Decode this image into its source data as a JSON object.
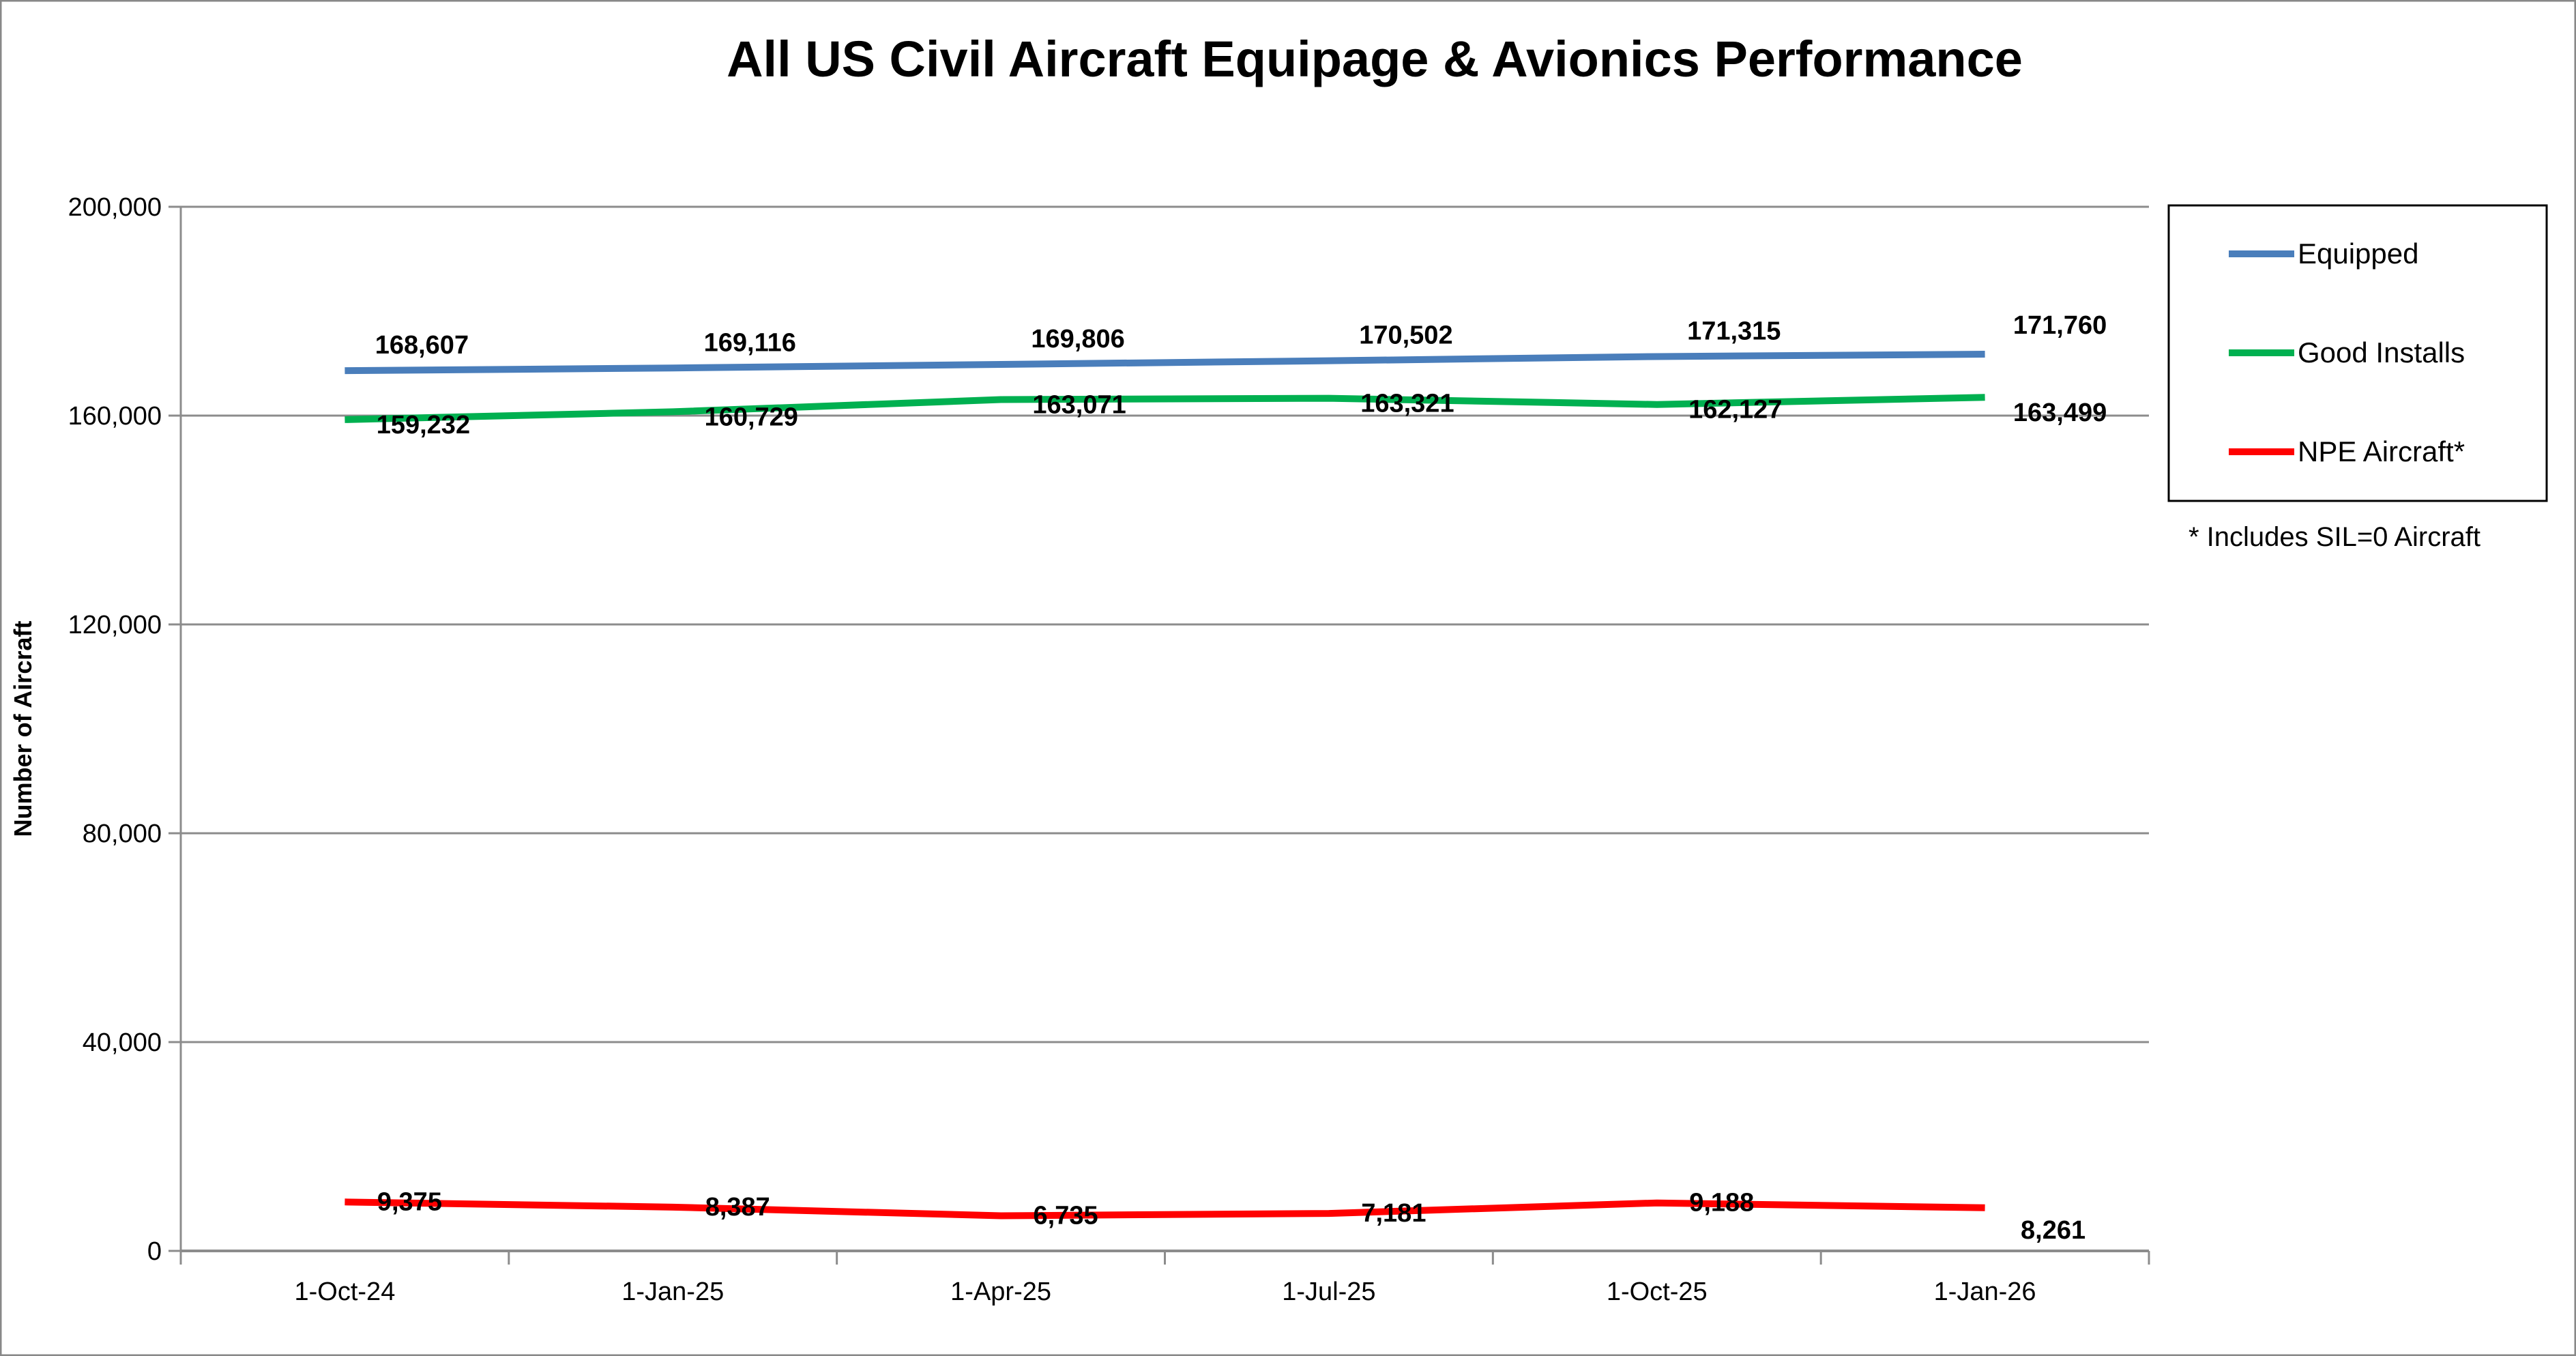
{
  "chart_data": {
    "type": "line",
    "title": "All US Civil Aircraft Equipage & Avionics Performance",
    "xlabel": "",
    "ylabel": "Number of Aircraft",
    "categories": [
      "1-Oct-24",
      "1-Jan-25",
      "1-Apr-25",
      "1-Jul-25",
      "1-Oct-25",
      "1-Jan-26"
    ],
    "ylim": [
      0,
      200000
    ],
    "yticks": [
      0,
      40000,
      80000,
      120000,
      160000,
      200000
    ],
    "ytick_labels": [
      "0",
      "40,000",
      "80,000",
      "120,000",
      "160,000",
      "200,000"
    ],
    "grid": true,
    "legend_position": "right",
    "series": [
      {
        "name": "Equipped",
        "color": "#4a7ebb",
        "values": [
          168607,
          169116,
          169806,
          170502,
          171315,
          171760
        ],
        "labels": [
          "168,607",
          "169,116",
          "169,806",
          "170,502",
          "171,315",
          "171,760"
        ]
      },
      {
        "name": "Good Installs",
        "color": "#00b050",
        "values": [
          159232,
          160729,
          163071,
          163321,
          162127,
          163499
        ],
        "labels": [
          "159,232",
          "160,729",
          "163,071",
          "163,321",
          "162,127",
          "163,499"
        ]
      },
      {
        "name": "NPE Aircraft*",
        "color": "#ff0000",
        "values": [
          9375,
          8387,
          6735,
          7181,
          9188,
          8261
        ],
        "labels": [
          "9,375",
          "8,387",
          "6,735",
          "7,181",
          "9,188",
          "8,261"
        ]
      }
    ],
    "footnote": "* Includes SIL=0 Aircraft"
  }
}
